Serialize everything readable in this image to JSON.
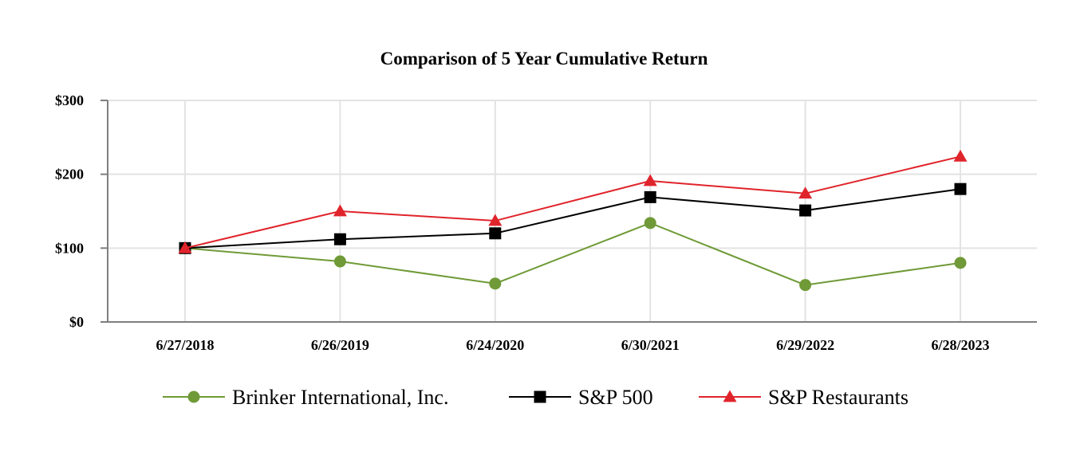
{
  "chart_data": {
    "type": "line",
    "title": "Comparison of 5 Year Cumulative Return",
    "xlabel": "",
    "ylabel": "",
    "categories": [
      "6/27/2018",
      "6/26/2019",
      "6/24/2020",
      "6/30/2021",
      "6/29/2022",
      "6/28/2023"
    ],
    "ylim": [
      0,
      300
    ],
    "yticks": [
      0,
      100,
      200,
      300
    ],
    "ytick_labels": [
      "$0",
      "$100",
      "$200",
      "$300"
    ],
    "grid": true,
    "legend_position": "bottom",
    "series": [
      {
        "name": "Brinker International, Inc.",
        "color": "#6f9a37",
        "marker": "circle",
        "values": [
          100,
          82,
          52,
          134,
          50,
          80
        ]
      },
      {
        "name": "S&P 500",
        "color": "#000000",
        "marker": "square",
        "values": [
          100,
          112,
          120,
          169,
          151,
          180
        ]
      },
      {
        "name": "S&P Restaurants",
        "color": "#e0242b",
        "marker": "triangle",
        "values": [
          100,
          150,
          137,
          191,
          174,
          224
        ]
      }
    ]
  }
}
